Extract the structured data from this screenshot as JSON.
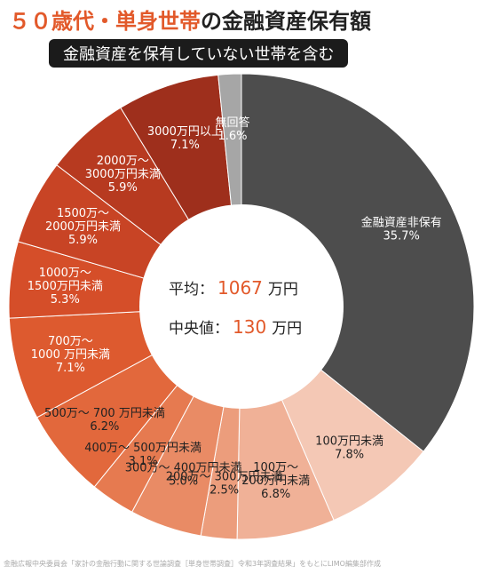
{
  "title": {
    "highlight": "５０歳代・単身世帯",
    "rest": "の金融資産保有額"
  },
  "subtitle": "金融資産を保有していない世帯を含む",
  "center": {
    "average_label": "平均：",
    "average_value": "1067",
    "average_unit": "万円",
    "median_label": "中央値：",
    "median_value": "130",
    "median_unit": "万円"
  },
  "source": "金融広報中央委員会「家計の金融行動に関する世論調査［単身世帯調査］令和3年調査結果」をもとにLIMO編集部作成",
  "chart_data": {
    "type": "pie",
    "title": "５０歳代・単身世帯の金融資産保有額",
    "subtitle": "金融資産を保有していない世帯を含む",
    "donut": true,
    "start": "12 o'clock, clockwise",
    "slices": [
      {
        "label": [
          "金融資産非保有"
        ],
        "value": 35.7,
        "value_text": "35.7%",
        "color": "#4d4d4d",
        "text_color": "#ffffff"
      },
      {
        "label": [
          "100万円未満"
        ],
        "value": 7.8,
        "value_text": "7.8%",
        "color": "#f4c8b5",
        "text_color": "#222222"
      },
      {
        "label": [
          "100万～",
          "200万円未満"
        ],
        "value": 6.8,
        "value_text": "6.8%",
        "color": "#f0b197",
        "text_color": "#222222"
      },
      {
        "label": [
          "200万～ 300万円未満"
        ],
        "value": 2.5,
        "value_text": "2.5%",
        "color": "#ec9d7c",
        "text_color": "#222222"
      },
      {
        "label": [
          "300万～ 400万円未満"
        ],
        "value": 5.0,
        "value_text": "5.0%",
        "color": "#e98b65",
        "text_color": "#222222"
      },
      {
        "label": [
          "400万～ 500万円未満"
        ],
        "value": 3.1,
        "value_text": "3.1%",
        "color": "#e67a50",
        "text_color": "#222222"
      },
      {
        "label": [
          "500万～ 700 万円未満"
        ],
        "value": 6.2,
        "value_text": "6.2%",
        "color": "#e2683c",
        "text_color": "#222222"
      },
      {
        "label": [
          "700万～",
          "1000 万円未満"
        ],
        "value": 7.1,
        "value_text": "7.1%",
        "color": "#dd5a2f",
        "text_color": "#ffffff"
      },
      {
        "label": [
          "1000万～",
          "1500万円未満"
        ],
        "value": 5.3,
        "value_text": "5.3%",
        "color": "#d54e29",
        "text_color": "#ffffff"
      },
      {
        "label": [
          "1500万～",
          "2000万円未満"
        ],
        "value": 5.9,
        "value_text": "5.9%",
        "color": "#c84425",
        "text_color": "#ffffff"
      },
      {
        "label": [
          "2000万～",
          "3000万円未満"
        ],
        "value": 5.9,
        "value_text": "5.9%",
        "color": "#b73a20",
        "text_color": "#ffffff"
      },
      {
        "label": [
          "3000万円以上"
        ],
        "value": 7.1,
        "value_text": "7.1%",
        "color": "#9e2f1c",
        "text_color": "#ffffff"
      },
      {
        "label": [
          "無回答"
        ],
        "value": 1.6,
        "value_text": "1.6%",
        "color": "#a6a6a6",
        "text_color": "#ffffff"
      }
    ]
  }
}
